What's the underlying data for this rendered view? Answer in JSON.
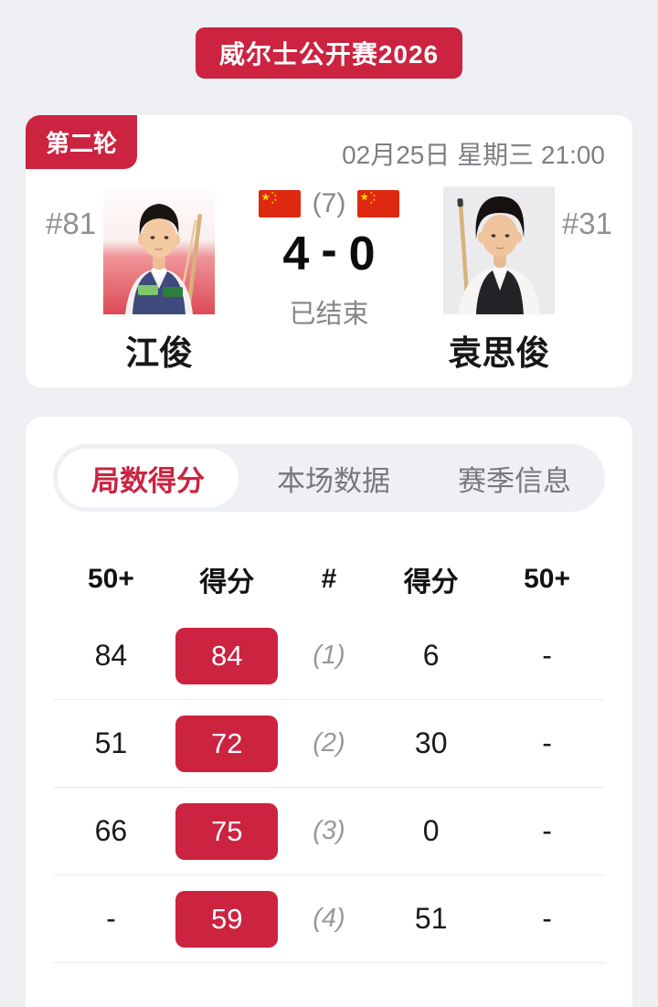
{
  "page": {
    "background": "#edeff2",
    "accent_red": "#cb2340",
    "card_color": "#ffffff"
  },
  "tournament_banner": {
    "title": "威尔士公开赛2026"
  },
  "match_card": {
    "round_badge": "第二轮",
    "datetime": "02月25日 星期三 21:00",
    "best_of": "(7)",
    "status": "已结束",
    "score": {
      "home": "4",
      "separator": "-",
      "away": "0"
    },
    "home": {
      "rank": "#81",
      "name": "江俊",
      "flag_icon": "china-flag-icon"
    },
    "away": {
      "rank": "#31",
      "name": "袁思俊",
      "flag_icon": "china-flag-icon"
    }
  },
  "tabs": [
    {
      "id": "frame-scores",
      "label": "局数得分",
      "active": true
    },
    {
      "id": "match-stats",
      "label": "本场数据",
      "active": false
    },
    {
      "id": "season-info",
      "label": "赛季信息",
      "active": false
    }
  ],
  "frames_table": {
    "headers": [
      "50+",
      "得分",
      "#",
      "得分",
      "50+"
    ],
    "rows": [
      {
        "home_break": "84",
        "home_score": "84",
        "frame": "(1)",
        "away_score": "6",
        "away_break": "-",
        "winner": "home"
      },
      {
        "home_break": "51",
        "home_score": "72",
        "frame": "(2)",
        "away_score": "30",
        "away_break": "-",
        "winner": "home"
      },
      {
        "home_break": "66",
        "home_score": "75",
        "frame": "(3)",
        "away_score": "0",
        "away_break": "-",
        "winner": "home"
      },
      {
        "home_break": "-",
        "home_score": "59",
        "frame": "(4)",
        "away_score": "51",
        "away_break": "-",
        "winner": "home"
      }
    ]
  }
}
